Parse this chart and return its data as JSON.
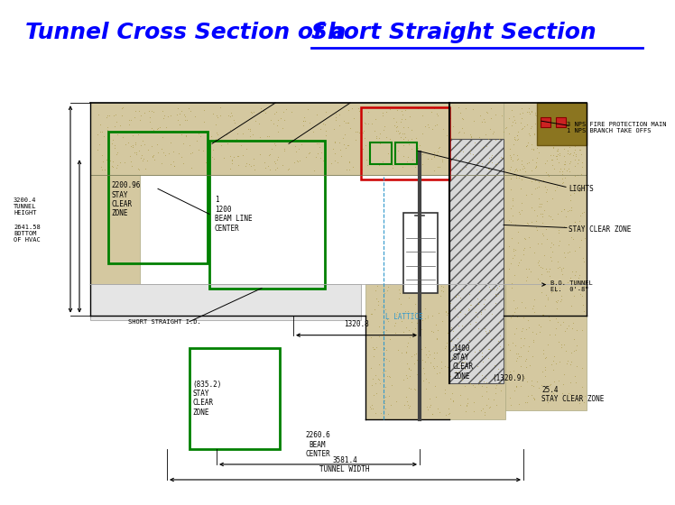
{
  "title_part1": "Tunnel Cross Section of a ",
  "title_part2": "Short Straight Section",
  "title_color": "blue",
  "title_fontsize": 18,
  "bg_color": "#ffffff",
  "concrete_color": "#d4c8a0",
  "green_box_color": "#008000",
  "red_box_color": "#cc0000",
  "label_tunnel_height": "3200.4\nTUNNEL\nHEIGHT",
  "label_bottom_hvac": "2641.58\nBOTTOM\nOF HVAC",
  "label_stay_clear_left": "2200.96\nSTAY\nCLEAR\nZONE",
  "label_beam_line": "1\n1200\nBEAM LINE\nCENTER",
  "label_short_straight": "SHORT STRAIGHT I.D.",
  "label_dim_1320": "1320.8",
  "label_stay_clear_bottom": "(835.2)\nSTAY\nCLEAR\nZONE",
  "label_stay_clear_1400": "1400\nSTAY\nCLEAR\nZONE",
  "label_dim_1320b": "(1320.9)",
  "label_dim_25": "25.4\nSTAY CLEAR ZONE",
  "label_beam_center": "2260.6\nBEAM\nCENTER",
  "label_tunnel_width": "3581.4\nTUNNEL WIDTH",
  "label_bo_tunnel": "B.O. TUNNEL\nEL.  0'-8\"",
  "label_lights": "LIGHTS",
  "label_stay_clear_right": "STAY CLEAR ZONE",
  "label_nps_main": "3 NPS FIRE PROTECTION MAIN\n1 NPS BRANCH TAKE OFFS",
  "label_lattice": "L LATTICE"
}
